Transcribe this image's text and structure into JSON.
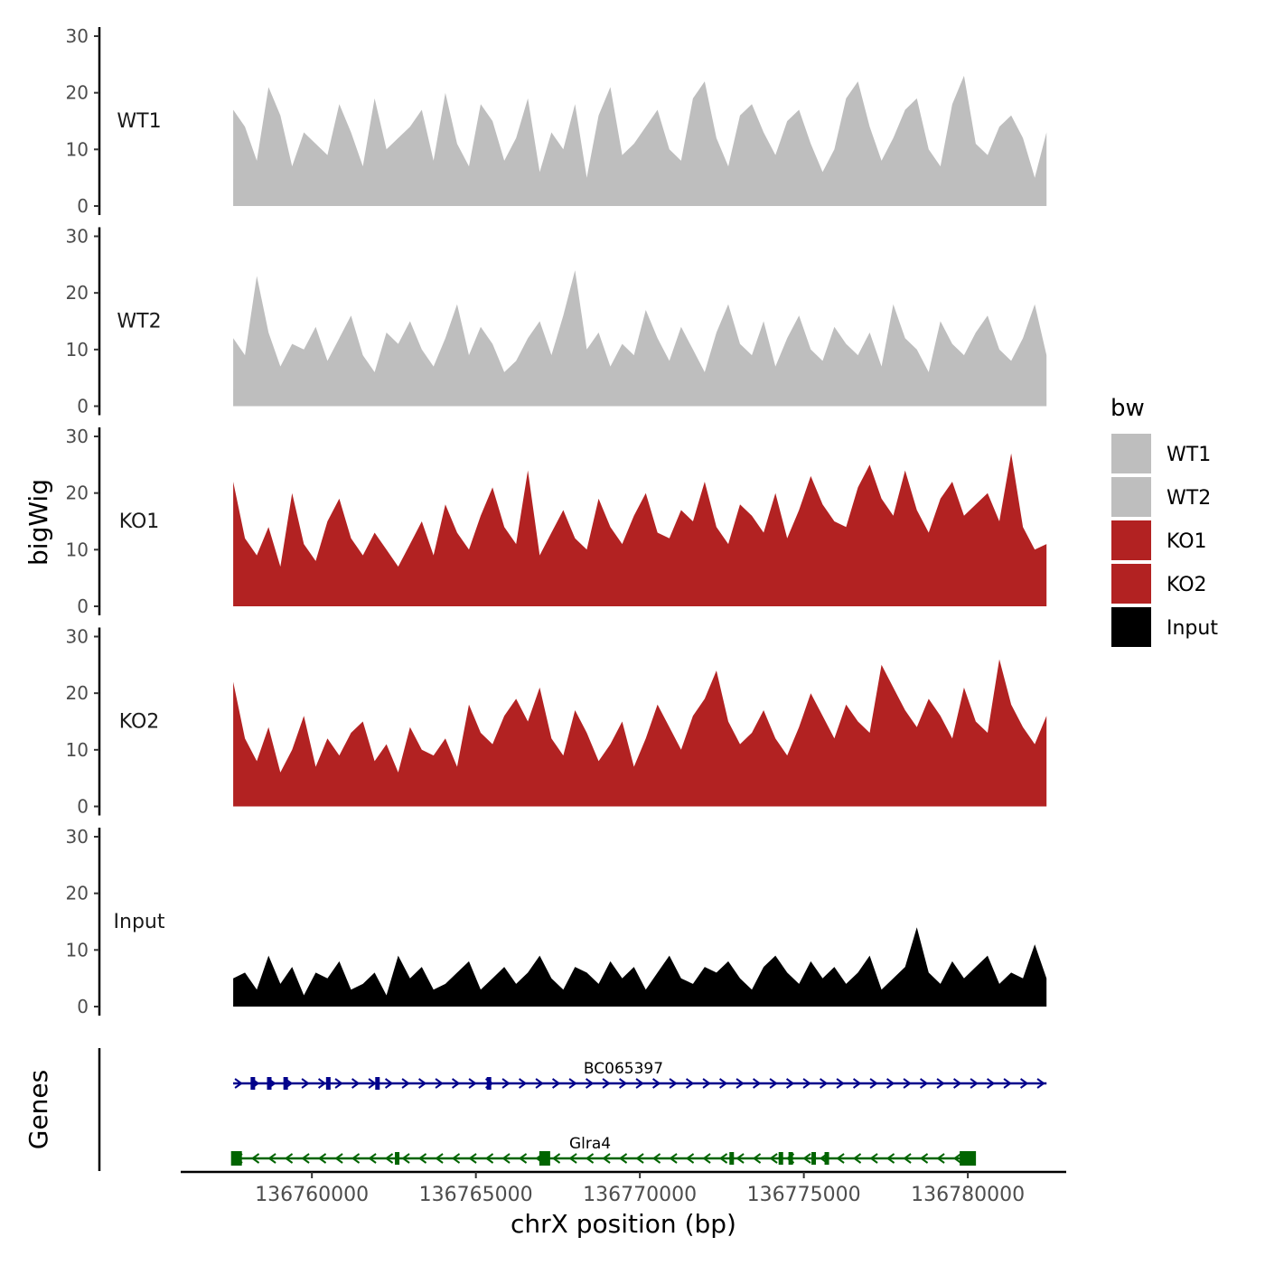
{
  "chart_data": {
    "type": "area",
    "ylabel": "bigWig",
    "xlabel": "chrX position (bp)",
    "ylim": [
      0,
      30
    ],
    "yticks": [
      0,
      10,
      20,
      30
    ],
    "xlim": [
      136756000,
      136783000
    ],
    "xrange": [
      136757600,
      136782400
    ],
    "xticks": [
      136760000,
      136765000,
      136770000,
      136775000,
      136780000
    ],
    "xtick_labels": [
      "136760000",
      "136765000",
      "136770000",
      "136775000",
      "136780000"
    ],
    "legend": {
      "title": "bw",
      "position": "right",
      "entries": [
        {
          "label": "WT1",
          "color": "#bebebe"
        },
        {
          "label": "WT2",
          "color": "#bebebe"
        },
        {
          "label": "KO1",
          "color": "#b22222"
        },
        {
          "label": "KO2",
          "color": "#b22222"
        },
        {
          "label": "Input",
          "color": "#000000"
        }
      ]
    },
    "series": [
      {
        "name": "WT1",
        "color": "#bebebe",
        "values": [
          17,
          14,
          8,
          21,
          16,
          7,
          13,
          11,
          9,
          18,
          13,
          7,
          19,
          10,
          12,
          14,
          17,
          8,
          20,
          11,
          7,
          18,
          15,
          8,
          12,
          19,
          6,
          13,
          10,
          18,
          5,
          16,
          21,
          9,
          11,
          14,
          17,
          10,
          8,
          19,
          22,
          12,
          7,
          16,
          18,
          13,
          9,
          15,
          17,
          11,
          6,
          10,
          19,
          22,
          14,
          8,
          12,
          17,
          19,
          10,
          7,
          18,
          23,
          11,
          9,
          14,
          16,
          12,
          5,
          13
        ]
      },
      {
        "name": "WT2",
        "color": "#bebebe",
        "values": [
          12,
          9,
          23,
          13,
          7,
          11,
          10,
          14,
          8,
          12,
          16,
          9,
          6,
          13,
          11,
          15,
          10,
          7,
          12,
          18,
          9,
          14,
          11,
          6,
          8,
          12,
          15,
          9,
          16,
          24,
          10,
          13,
          7,
          11,
          9,
          17,
          12,
          8,
          14,
          10,
          6,
          13,
          18,
          11,
          9,
          15,
          7,
          12,
          16,
          10,
          8,
          14,
          11,
          9,
          13,
          7,
          18,
          12,
          10,
          6,
          15,
          11,
          9,
          13,
          16,
          10,
          8,
          12,
          18,
          9
        ]
      },
      {
        "name": "KO1",
        "color": "#b22222",
        "values": [
          22,
          12,
          9,
          14,
          7,
          20,
          11,
          8,
          15,
          19,
          12,
          9,
          13,
          10,
          7,
          11,
          15,
          9,
          18,
          13,
          10,
          16,
          21,
          14,
          11,
          24,
          9,
          13,
          17,
          12,
          10,
          19,
          14,
          11,
          16,
          20,
          13,
          12,
          17,
          15,
          22,
          14,
          11,
          18,
          16,
          13,
          20,
          12,
          17,
          23,
          18,
          15,
          14,
          21,
          25,
          19,
          16,
          24,
          17,
          13,
          19,
          22,
          16,
          18,
          20,
          15,
          27,
          14,
          10,
          11
        ]
      },
      {
        "name": "KO2",
        "color": "#b22222",
        "values": [
          22,
          12,
          8,
          14,
          6,
          10,
          16,
          7,
          12,
          9,
          13,
          15,
          8,
          11,
          6,
          14,
          10,
          9,
          12,
          7,
          18,
          13,
          11,
          16,
          19,
          15,
          21,
          12,
          9,
          17,
          13,
          8,
          11,
          15,
          7,
          12,
          18,
          14,
          10,
          16,
          19,
          24,
          15,
          11,
          13,
          17,
          12,
          9,
          14,
          20,
          16,
          12,
          18,
          15,
          13,
          25,
          21,
          17,
          14,
          19,
          16,
          12,
          21,
          15,
          13,
          26,
          18,
          14,
          11,
          16
        ]
      },
      {
        "name": "Input",
        "color": "#000000",
        "values": [
          5,
          6,
          3,
          9,
          4,
          7,
          2,
          6,
          5,
          8,
          3,
          4,
          6,
          2,
          9,
          5,
          7,
          3,
          4,
          6,
          8,
          3,
          5,
          7,
          4,
          6,
          9,
          5,
          3,
          7,
          6,
          4,
          8,
          5,
          7,
          3,
          6,
          9,
          5,
          4,
          7,
          6,
          8,
          5,
          3,
          7,
          9,
          6,
          4,
          8,
          5,
          7,
          4,
          6,
          9,
          3,
          5,
          7,
          14,
          6,
          4,
          8,
          5,
          7,
          9,
          4,
          6,
          5,
          11,
          5
        ]
      }
    ],
    "genes": {
      "label": "Genes",
      "tracks": [
        {
          "name": "BC065397",
          "strand": "+",
          "color": "#00008b",
          "start": 136757600,
          "end": 136782400,
          "exons": [
            136758200,
            136758700,
            136759200,
            136760500,
            136762000,
            136765400
          ]
        },
        {
          "name": "Glra4",
          "strand": "-",
          "color": "#006400",
          "start": 136757600,
          "end": 136780000,
          "exons": [
            136757700,
            136762600,
            136767100,
            136772800,
            136774300,
            136774600,
            136775300,
            136775700,
            136780000
          ]
        }
      ]
    }
  }
}
